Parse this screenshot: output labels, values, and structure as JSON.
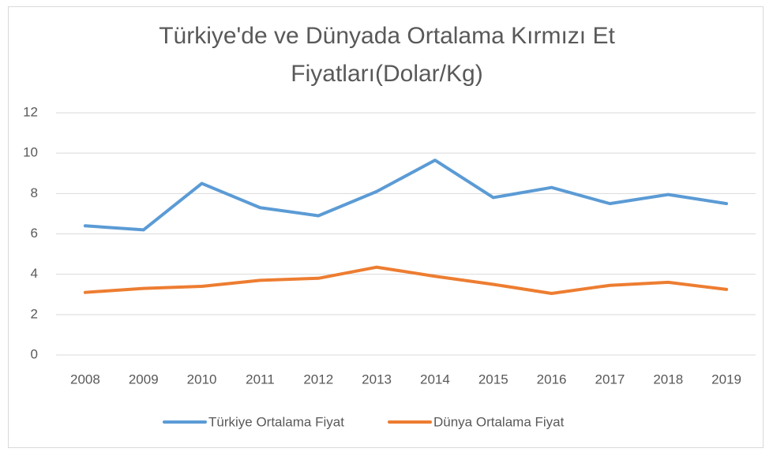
{
  "chart_data": {
    "type": "line",
    "title": "Türkiye'de ve Dünyada Ortalama Kırmızı Et Fiyatları(Dolar/Kg)",
    "categories": [
      "2008",
      "2009",
      "2010",
      "2011",
      "2012",
      "2013",
      "2014",
      "2015",
      "2016",
      "2017",
      "2018",
      "2019"
    ],
    "series": [
      {
        "name": "Türkiye Ortalama Fiyat",
        "color": "#5b9bd5",
        "values": [
          6.4,
          6.2,
          8.5,
          7.3,
          6.9,
          8.1,
          9.65,
          7.8,
          8.3,
          7.5,
          7.95,
          7.5
        ]
      },
      {
        "name": "Dünya Ortalama Fiyat",
        "color": "#ed7d31",
        "values": [
          3.1,
          3.3,
          3.4,
          3.7,
          3.8,
          4.35,
          3.9,
          3.5,
          3.05,
          3.45,
          3.6,
          3.25
        ]
      }
    ],
    "ylim": [
      0,
      12
    ],
    "yticks": [
      0,
      2,
      4,
      6,
      8,
      10,
      12
    ],
    "grid": true,
    "legend": "bottom"
  }
}
